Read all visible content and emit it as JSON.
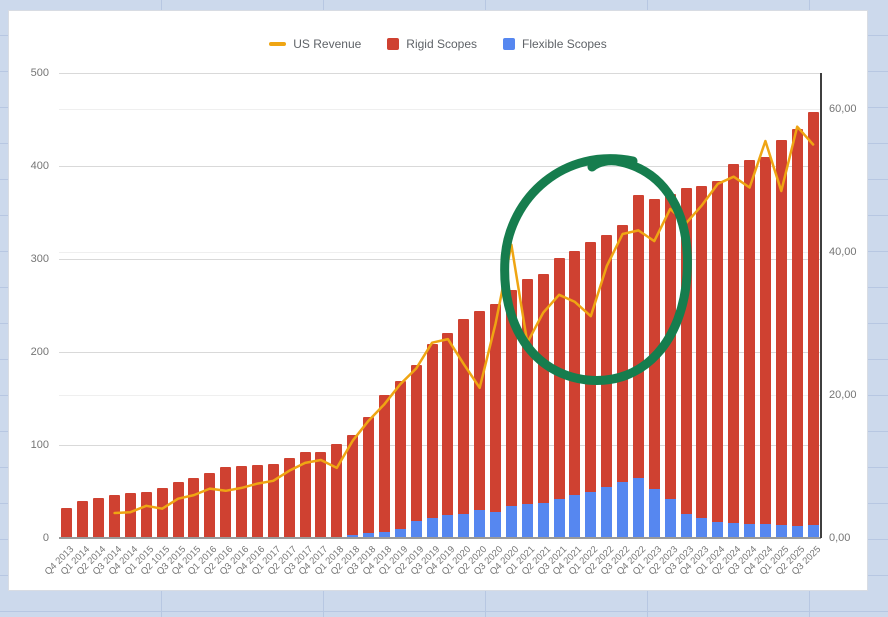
{
  "legend": {
    "items": [
      {
        "label": "US Revenue",
        "swatch": "line-dash",
        "color": "#efa513"
      },
      {
        "label": "Rigid Scopes",
        "swatch": "box",
        "color": "#cf4131"
      },
      {
        "label": "Flexible Scopes",
        "swatch": "box",
        "color": "#5687f0"
      }
    ]
  },
  "axes": {
    "left": {
      "tick_labels": [
        "0",
        "100",
        "200",
        "300",
        "400",
        "500"
      ],
      "tick_values": [
        0,
        100,
        200,
        300,
        400,
        500
      ],
      "max": 500
    },
    "right": {
      "tick_labels": [
        "0,00",
        "20,00",
        "40,00",
        "60,00"
      ],
      "tick_values": [
        0,
        20,
        40,
        60
      ],
      "max": 65
    }
  },
  "colors": {
    "rigid": "#cf4131",
    "flexible": "#5687f0",
    "revenue_line": "#efa513",
    "annotation_green": "#167d4e",
    "grid_major": "#d9d9d9",
    "grid_minor": "#efefef",
    "axis_text": "#757575",
    "sheet_background": "#ccd9ec"
  },
  "annotation": {
    "shape": "hand-drawn-circle",
    "color": "#167d4e",
    "circled_region": "Q1 2021 - Q1 2023"
  },
  "chart_data": {
    "type": "combo-stacked-column-and-line",
    "title": "",
    "categories": [
      "Q4 2013",
      "Q1 2014",
      "Q2 2014",
      "Q3 2014",
      "Q4 2014",
      "Q1 2015",
      "Q2 1015",
      "Q3 2015",
      "Q4 2015",
      "Q1 2016",
      "Q2 2016",
      "Q3 2016",
      "Q4 2016",
      "Q1 2017",
      "Q2 2017",
      "Q3 2017",
      "Q4 2017",
      "Q1 2018",
      "Q2 2018",
      "Q3 2018",
      "Q4 2018",
      "Q1 2019",
      "Q2 2019",
      "Q3 2019",
      "Q4 2019",
      "Q1 2020",
      "Q2 2020",
      "Q3 2020",
      "Q4 2020",
      "Q1 2021",
      "Q2 2021",
      "Q3 2021",
      "Q4 2021",
      "Q1 2022",
      "Q2 2022",
      "Q3 2022",
      "Q4 2022",
      "Q1 2023",
      "Q2 2023",
      "Q3 2023",
      "Q4 2023",
      "Q1 2024",
      "Q2 2024",
      "Q3 2024",
      "Q4 2024",
      "Q1 2025",
      "Q2 2025",
      "Q3 2025"
    ],
    "series": [
      {
        "name": "Flexible Scopes",
        "type": "column-stack-bottom",
        "axis": "left",
        "color": "#5687f0",
        "values": [
          0,
          0,
          0,
          0,
          0,
          0,
          0,
          0,
          0,
          0,
          0,
          0,
          0,
          0,
          0,
          0,
          0,
          0,
          3,
          5,
          7,
          10,
          18,
          22,
          25,
          26,
          30,
          28,
          34,
          37,
          38,
          42,
          46,
          50,
          55,
          60,
          65,
          53,
          42,
          26,
          22,
          17,
          16,
          15,
          15,
          14,
          13,
          14
        ]
      },
      {
        "name": "Rigid Scopes",
        "type": "column-stack-top",
        "axis": "left",
        "color": "#cf4131",
        "values": [
          32,
          40,
          43,
          46,
          48,
          50,
          54,
          60,
          65,
          70,
          76,
          77,
          79,
          80,
          86,
          92,
          92,
          101,
          108,
          125,
          147,
          159,
          168,
          187,
          195,
          210,
          214,
          224,
          233,
          241,
          246,
          259,
          263,
          268,
          271,
          277,
          304,
          312,
          328,
          350,
          356,
          367,
          386,
          392,
          395,
          414,
          427,
          444
        ]
      },
      {
        "name": "US Revenue",
        "type": "line",
        "axis": "right",
        "color": "#efa513",
        "values": [
          null,
          null,
          null,
          3.5,
          3.6,
          4.5,
          4.1,
          5.5,
          6.0,
          6.9,
          6.6,
          7.0,
          7.6,
          8.0,
          9.4,
          10.5,
          10.9,
          9.8,
          13.6,
          16.4,
          18.7,
          21.5,
          23.7,
          27.3,
          27.8,
          24.3,
          21.0,
          30.0,
          41.0,
          27.3,
          31.5,
          34.0,
          33.0,
          31.0,
          38.0,
          42.5,
          43.0,
          41.5,
          46.0,
          44.0,
          46.5,
          49.5,
          50.5,
          49.0,
          55.5,
          48.5,
          57.5,
          55.0
        ]
      }
    ],
    "ylim_left": [
      0,
      500
    ],
    "ylim_right": [
      0,
      65
    ],
    "grid": "horizontal-major-and-right-axis-minor",
    "legend_position": "top-center"
  }
}
